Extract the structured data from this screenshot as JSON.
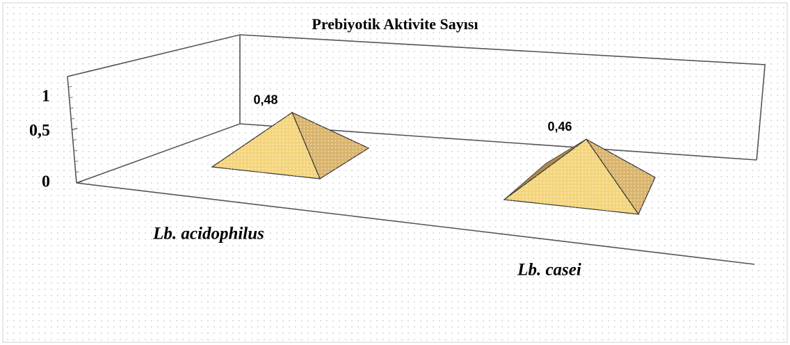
{
  "chart_data": {
    "type": "pyramid",
    "title": "Prebiyotik Aktivite Sayısı",
    "categories": [
      "Lb. acidophilus",
      "Lb. casei"
    ],
    "values": [
      0.48,
      0.46
    ],
    "value_labels": [
      "0,48",
      "0,46"
    ],
    "color": "#f4d57c",
    "ylim": [
      0,
      1
    ],
    "yticks": [
      0,
      {
        "value": 0.5,
        "label": "0,5"
      },
      1
    ]
  }
}
